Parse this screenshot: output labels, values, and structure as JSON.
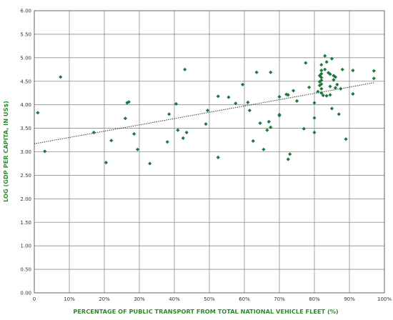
{
  "chart_data": {
    "type": "scatter",
    "xlabel": "PERCENTAGE OF PUBLIC TRANSPORT FROM TOTAL NATIONAL VEHICLE FLEET (%)",
    "ylabel": "LOG (GDP PER CAPITA, IN US$)",
    "xlim": [
      0,
      100
    ],
    "ylim": [
      0,
      6
    ],
    "x_ticks": [
      "0",
      "10%",
      "20%",
      "30%",
      "40%",
      "50%",
      "60%",
      "70%",
      "80%",
      "90%",
      "100%"
    ],
    "y_ticks": [
      "0.00",
      "0.50",
      "1.00",
      "1.50",
      "2.00",
      "2.50",
      "3.00",
      "3.50",
      "4.00",
      "4.50",
      "5.00",
      "5.50",
      "6.00"
    ],
    "grid": true,
    "legend": "none",
    "marker_color": "#1f7a3a",
    "axis_title_color": "#2e8b2e",
    "trendline": {
      "style": "dotted",
      "x": [
        0,
        97
      ],
      "y": [
        3.17,
        4.47
      ]
    },
    "points": [
      [
        1,
        3.83
      ],
      [
        3,
        3.01
      ],
      [
        7.5,
        4.59
      ],
      [
        17,
        3.41
      ],
      [
        20.5,
        2.77
      ],
      [
        22,
        3.24
      ],
      [
        26,
        3.71
      ],
      [
        26.5,
        4.04
      ],
      [
        27,
        4.06
      ],
      [
        28.5,
        3.38
      ],
      [
        29.5,
        3.05
      ],
      [
        33,
        2.75
      ],
      [
        38,
        3.21
      ],
      [
        38.5,
        3.8
      ],
      [
        40.5,
        4.02
      ],
      [
        41,
        3.46
      ],
      [
        42.5,
        3.29
      ],
      [
        43,
        4.75
      ],
      [
        43.5,
        3.41
      ],
      [
        49,
        3.59
      ],
      [
        49.5,
        3.88
      ],
      [
        52.5,
        4.18
      ],
      [
        52.5,
        2.88
      ],
      [
        55.5,
        4.16
      ],
      [
        57.5,
        4.03
      ],
      [
        59.5,
        4.43
      ],
      [
        61,
        4.05
      ],
      [
        61.5,
        3.88
      ],
      [
        62.5,
        3.23
      ],
      [
        63.5,
        4.69
      ],
      [
        64.5,
        3.61
      ],
      [
        65.5,
        3.05
      ],
      [
        66.5,
        3.46
      ],
      [
        67,
        3.64
      ],
      [
        67.5,
        4.69
      ],
      [
        67.5,
        3.52
      ],
      [
        70,
        4.17
      ],
      [
        70,
        3.79
      ],
      [
        70,
        3.77
      ],
      [
        72,
        4.22
      ],
      [
        72.5,
        4.21
      ],
      [
        72.5,
        2.84
      ],
      [
        73,
        2.95
      ],
      [
        74,
        4.3
      ],
      [
        75,
        4.08
      ],
      [
        77,
        3.49
      ],
      [
        77.5,
        4.89
      ],
      [
        78.5,
        4.37
      ],
      [
        80,
        4.04
      ],
      [
        80,
        3.72
      ],
      [
        80,
        3.41
      ],
      [
        81,
        4.28
      ],
      [
        81.5,
        4.62
      ],
      [
        81.5,
        4.49
      ],
      [
        81.5,
        4.41
      ],
      [
        82,
        4.85
      ],
      [
        82,
        4.73
      ],
      [
        82,
        4.66
      ],
      [
        82,
        4.58
      ],
      [
        82,
        4.52
      ],
      [
        82,
        4.44
      ],
      [
        82,
        4.34
      ],
      [
        82,
        4.25
      ],
      [
        82.5,
        4.2
      ],
      [
        83,
        5.04
      ],
      [
        83,
        4.75
      ],
      [
        83.5,
        4.91
      ],
      [
        83.5,
        4.19
      ],
      [
        84,
        4.68
      ],
      [
        84.5,
        4.65
      ],
      [
        84.5,
        4.39
      ],
      [
        84.5,
        4.21
      ],
      [
        85,
        4.98
      ],
      [
        85,
        3.92
      ],
      [
        85.5,
        4.62
      ],
      [
        85.5,
        4.53
      ],
      [
        86,
        4.59
      ],
      [
        86,
        4.36
      ],
      [
        86.5,
        4.43
      ],
      [
        87,
        3.8
      ],
      [
        87.5,
        4.34
      ],
      [
        88,
        4.75
      ],
      [
        89,
        3.27
      ],
      [
        91,
        4.73
      ],
      [
        91,
        4.23
      ],
      [
        97,
        4.72
      ],
      [
        97,
        4.56
      ]
    ]
  }
}
